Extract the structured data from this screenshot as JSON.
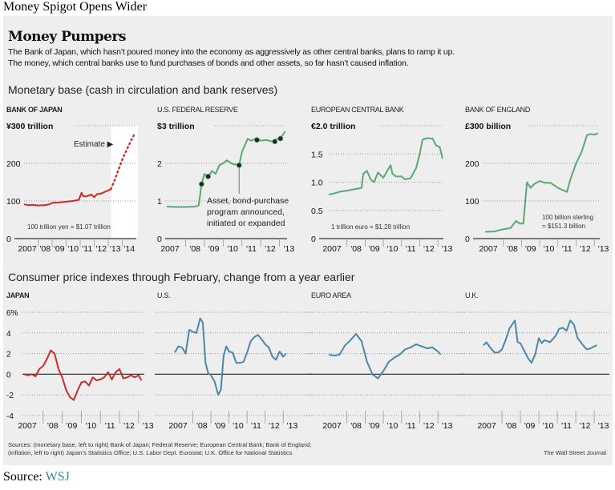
{
  "page": {
    "top_title": "Money Spigot Opens Wider",
    "headline": "Money Pumpers",
    "dek_line1": "The Bank of Japan, which hasn’t poured money into the economy as aggressively as other central banks, plans to ramp it up.",
    "dek_line2": "The money, which central banks use to fund purchases of bonds and other assets, so far hasn’t caused inflation.",
    "section1_title": "Monetary base (cash in circulation and bank reserves)",
    "section2_title": "Consumer price indexes through February, change from a year earlier",
    "sources_line1": "Sources: (monetary base, left to right) Bank of Japan; Federal Reserve; European Central Bank; Bank of England;",
    "sources_line2": "(inflation, left to right) Japan’s Statistics Office; U.S. Labor Dept. Eurostat; U.K. Office for National Statistics",
    "credit": "The Wall Street Journal",
    "bottom_source_label": "Source: ",
    "bottom_source_link": "WSJ"
  },
  "colors": {
    "japan_red": "#cc2b2b",
    "green": "#5aa872",
    "blue": "#4a87a8",
    "panel_bg": "#eeeeee",
    "link": "#2a8a94"
  },
  "chart_data": [
    {
      "type": "line",
      "title": "BANK OF JAPAN",
      "unit_label": "¥300 trillion",
      "ylim": [
        0,
        300
      ],
      "yticks": [
        0,
        100,
        200,
        300
      ],
      "ytick_labels": [
        "0",
        "100",
        "200",
        "¥300 trillion"
      ],
      "xlim": [
        2007,
        2015
      ],
      "xtick_labels": [
        "2007",
        "'08",
        "'09",
        "'10",
        "'11",
        "'12",
        "'13",
        "'14"
      ],
      "annotation": "Estimate ▶",
      "note": "100 trillion yen = $1.07 trillion",
      "estimate_start": 2013.2,
      "series": [
        {
          "name": "Monetary base",
          "style": "solid",
          "color": "#cc2b2b",
          "x": [
            2007,
            2007.3,
            2007.6,
            2008,
            2008.4,
            2008.8,
            2009,
            2009.5,
            2010,
            2010.5,
            2010.9,
            2011.1,
            2011.2,
            2011.4,
            2011.8,
            2012,
            2012.2,
            2012.5,
            2012.8,
            2013,
            2013.2
          ],
          "y": [
            91,
            89,
            90,
            88,
            89,
            91,
            95,
            96,
            98,
            100,
            103,
            122,
            113,
            112,
            117,
            110,
            118,
            120,
            125,
            128,
            132
          ]
        },
        {
          "name": "Estimate",
          "style": "dotted",
          "color": "#cc2b2b",
          "x": [
            2013.2,
            2013.5,
            2013.8,
            2014,
            2014.3,
            2014.6,
            2014.9
          ],
          "y": [
            132,
            160,
            190,
            210,
            235,
            258,
            280
          ]
        }
      ]
    },
    {
      "type": "line",
      "title": "U.S. FEDERAL RESERVE",
      "unit_label": "$3 trillion",
      "ylim": [
        0,
        3
      ],
      "yticks": [
        0,
        1,
        2,
        3
      ],
      "ytick_labels": [
        "0",
        "1",
        "2",
        "$3 trillion"
      ],
      "xlim": [
        2007,
        2013.4
      ],
      "xtick_labels": [
        "2007",
        "'08",
        "'09",
        "'10",
        "'11",
        "'12",
        "'13"
      ],
      "annotation": "Asset, bond-purchase program announced, initiated or expanded",
      "series": [
        {
          "name": "Monetary base",
          "color": "#5aa872",
          "x": [
            2007,
            2007.5,
            2008,
            2008.5,
            2008.7,
            2008.85,
            2009,
            2009.2,
            2009.4,
            2009.6,
            2009.8,
            2010,
            2010.2,
            2010.5,
            2010.85,
            2011,
            2011.3,
            2011.5,
            2011.8,
            2012,
            2012.3,
            2012.6,
            2012.9,
            2013.1,
            2013.3
          ],
          "y": [
            0.85,
            0.84,
            0.84,
            0.85,
            0.88,
            1.45,
            1.72,
            1.62,
            1.8,
            1.72,
            1.95,
            2.0,
            2.08,
            1.98,
            1.95,
            2.3,
            2.65,
            2.6,
            2.68,
            2.6,
            2.62,
            2.58,
            2.65,
            2.7,
            2.85
          ]
        }
      ],
      "event_markers": [
        {
          "x": 2008.85,
          "y": 1.45
        },
        {
          "x": 2009.2,
          "y": 1.65
        },
        {
          "x": 2010.85,
          "y": 1.95
        },
        {
          "x": 2011.8,
          "y": 2.62
        },
        {
          "x": 2012.75,
          "y": 2.58
        },
        {
          "x": 2013.05,
          "y": 2.66
        }
      ]
    },
    {
      "type": "line",
      "title": "EUROPEAN CENTRAL BANK",
      "unit_label": "€2.0 trillion",
      "ylim": [
        0,
        2.0
      ],
      "yticks": [
        0,
        0.5,
        1.0,
        1.5,
        2.0
      ],
      "ytick_labels": [
        "0",
        "0.5",
        "1.0",
        "1.5",
        "€2.0 trillion"
      ],
      "xlim": [
        2007,
        2013.3
      ],
      "xtick_labels": [
        "2007",
        "'08",
        "'09",
        "'10",
        "'11",
        "'12",
        "'13"
      ],
      "note": "1 trillion euro = $1.28 trillion",
      "series": [
        {
          "name": "Monetary base",
          "color": "#5aa872",
          "x": [
            2007,
            2007.3,
            2007.6,
            2008,
            2008.5,
            2008.8,
            2008.9,
            2009.1,
            2009.3,
            2009.5,
            2009.7,
            2010,
            2010.4,
            2010.5,
            2010.7,
            2011,
            2011.2,
            2011.5,
            2011.8,
            2012,
            2012.15,
            2012.4,
            2012.7,
            2012.9,
            2013.1,
            2013.25
          ],
          "y": [
            0.78,
            0.8,
            0.83,
            0.85,
            0.88,
            0.9,
            1.15,
            1.2,
            1.05,
            1.0,
            1.17,
            1.08,
            1.3,
            1.15,
            1.1,
            1.1,
            1.05,
            1.07,
            1.25,
            1.5,
            1.75,
            1.78,
            1.77,
            1.65,
            1.62,
            1.42
          ]
        }
      ]
    },
    {
      "type": "line",
      "title": "BANK OF ENGLAND",
      "unit_label": "£300 billion",
      "ylim": [
        0,
        300
      ],
      "yticks": [
        0,
        100,
        200,
        300
      ],
      "ytick_labels": [
        "0",
        "100",
        "200",
        "£300 billion"
      ],
      "xlim": [
        2007,
        2013.3
      ],
      "xtick_labels": [
        "2007",
        "'08",
        "'09",
        "'10",
        "'11",
        "'12",
        "'13"
      ],
      "note": "100 billion sterling = $151.3 billion",
      "series": [
        {
          "name": "Monetary base",
          "color": "#5aa872",
          "x": [
            2007,
            2007.5,
            2008,
            2008.4,
            2008.7,
            2008.9,
            2009.1,
            2009.3,
            2009.5,
            2009.7,
            2010,
            2010.3,
            2010.6,
            2011,
            2011.3,
            2011.5,
            2011.7,
            2012,
            2012.3,
            2012.6,
            2012.8,
            2013,
            2013.2
          ],
          "y": [
            18,
            19,
            25,
            28,
            47,
            40,
            40,
            150,
            135,
            145,
            153,
            148,
            148,
            135,
            128,
            124,
            160,
            200,
            230,
            275,
            278,
            276,
            280
          ]
        }
      ]
    },
    {
      "type": "line",
      "title": "JAPAN",
      "ylim": [
        -4,
        6
      ],
      "yticks": [
        -4,
        -2,
        0,
        2,
        4,
        6
      ],
      "ytick_labels": [
        "-4",
        "-2",
        "0",
        "2",
        "4",
        "6%"
      ],
      "xlim": [
        2007,
        2013.3
      ],
      "xtick_labels": [
        "2007",
        "'08",
        "'09",
        "'10",
        "'11",
        "'12",
        "'13"
      ],
      "series": [
        {
          "name": "CPI change",
          "color": "#cc2b2b",
          "x": [
            2007,
            2007.2,
            2007.4,
            2007.6,
            2007.8,
            2008,
            2008.2,
            2008.4,
            2008.6,
            2008.8,
            2009,
            2009.2,
            2009.4,
            2009.6,
            2009.8,
            2010,
            2010.2,
            2010.4,
            2010.6,
            2010.8,
            2011,
            2011.2,
            2011.4,
            2011.6,
            2011.8,
            2012,
            2012.2,
            2012.4,
            2012.6,
            2012.8,
            2013,
            2013.15
          ],
          "y": [
            0,
            -0.1,
            0,
            -0.2,
            0.5,
            0.8,
            1.5,
            2.3,
            2.0,
            0.5,
            -0.3,
            -1.5,
            -2.2,
            -2.5,
            -1.6,
            -0.8,
            -0.7,
            -1.1,
            -0.3,
            -0.6,
            -0.5,
            -0.3,
            0.2,
            -0.5,
            0.2,
            0.5,
            -0.4,
            -0.3,
            -0.1,
            -0.3,
            -0.1,
            -0.6
          ]
        }
      ]
    },
    {
      "type": "line",
      "title": "U.S.",
      "ylim": [
        -4,
        6
      ],
      "xlim": [
        2007,
        2013.3
      ],
      "xtick_labels": [
        "2007",
        "'08",
        "'09",
        "'10",
        "'11",
        "'12",
        "'13"
      ],
      "series": [
        {
          "name": "CPI change",
          "color": "#4a87a8",
          "x": [
            2007,
            2007.2,
            2007.4,
            2007.6,
            2007.8,
            2008,
            2008.2,
            2008.4,
            2008.55,
            2008.7,
            2008.85,
            2009,
            2009.2,
            2009.4,
            2009.55,
            2009.7,
            2009.85,
            2010,
            2010.2,
            2010.4,
            2010.6,
            2010.8,
            2011,
            2011.2,
            2011.4,
            2011.6,
            2011.8,
            2012,
            2012.2,
            2012.4,
            2012.6,
            2012.8,
            2013,
            2013.15
          ],
          "y": [
            2.1,
            2.7,
            2.6,
            2.0,
            4.3,
            4.1,
            4.0,
            5.4,
            5.0,
            1.1,
            0.1,
            -0.1,
            -0.7,
            -2.0,
            -1.5,
            1.8,
            2.7,
            2.2,
            2.1,
            1.1,
            1.1,
            1.2,
            2.1,
            3.2,
            3.6,
            3.8,
            3.4,
            2.9,
            2.6,
            1.7,
            1.4,
            2.2,
            1.7,
            2.0
          ]
        }
      ]
    },
    {
      "type": "line",
      "title": "EURO AREA",
      "ylim": [
        -4,
        6
      ],
      "xlim": [
        2007,
        2013.3
      ],
      "xtick_labels": [
        "2007",
        "'08",
        "'09",
        "'10",
        "'11",
        "'12",
        "'13"
      ],
      "series": [
        {
          "name": "CPI change",
          "color": "#4a87a8",
          "x": [
            2007,
            2007.3,
            2007.6,
            2007.9,
            2008.2,
            2008.5,
            2008.8,
            2009.1,
            2009.4,
            2009.7,
            2010,
            2010.3,
            2010.6,
            2010.9,
            2011.2,
            2011.5,
            2011.8,
            2012.1,
            2012.4,
            2012.7,
            2013,
            2013.15
          ],
          "y": [
            1.9,
            1.8,
            1.9,
            2.8,
            3.3,
            3.9,
            3.2,
            1.2,
            0.0,
            -0.4,
            0.3,
            1.2,
            1.6,
            1.9,
            2.4,
            2.6,
            2.9,
            2.7,
            2.5,
            2.6,
            2.2,
            1.9
          ]
        }
      ]
    },
    {
      "type": "line",
      "title": "U.K.",
      "ylim": [
        -4,
        6
      ],
      "xlim": [
        2007,
        2013.3
      ],
      "xtick_labels": [
        "2007",
        "'08",
        "'09",
        "'10",
        "'11",
        "'12",
        "'13"
      ],
      "series": [
        {
          "name": "CPI change",
          "color": "#4a87a8",
          "x": [
            2007,
            2007.15,
            2007.4,
            2007.6,
            2007.8,
            2008,
            2008.2,
            2008.4,
            2008.7,
            2008.85,
            2009,
            2009.2,
            2009.4,
            2009.6,
            2009.8,
            2010,
            2010.15,
            2010.3,
            2010.6,
            2010.9,
            2011.1,
            2011.3,
            2011.5,
            2011.7,
            2011.9,
            2012.1,
            2012.4,
            2012.6,
            2012.8,
            2013,
            2013.15
          ],
          "y": [
            2.8,
            3.1,
            2.5,
            2.1,
            2.1,
            2.4,
            3.3,
            4.4,
            5.2,
            3.1,
            3.0,
            2.3,
            1.6,
            1.1,
            1.9,
            3.5,
            3.0,
            3.3,
            3.1,
            3.7,
            4.4,
            4.5,
            4.2,
            5.2,
            4.8,
            3.5,
            2.8,
            2.4,
            2.5,
            2.7,
            2.8
          ]
        }
      ]
    }
  ]
}
